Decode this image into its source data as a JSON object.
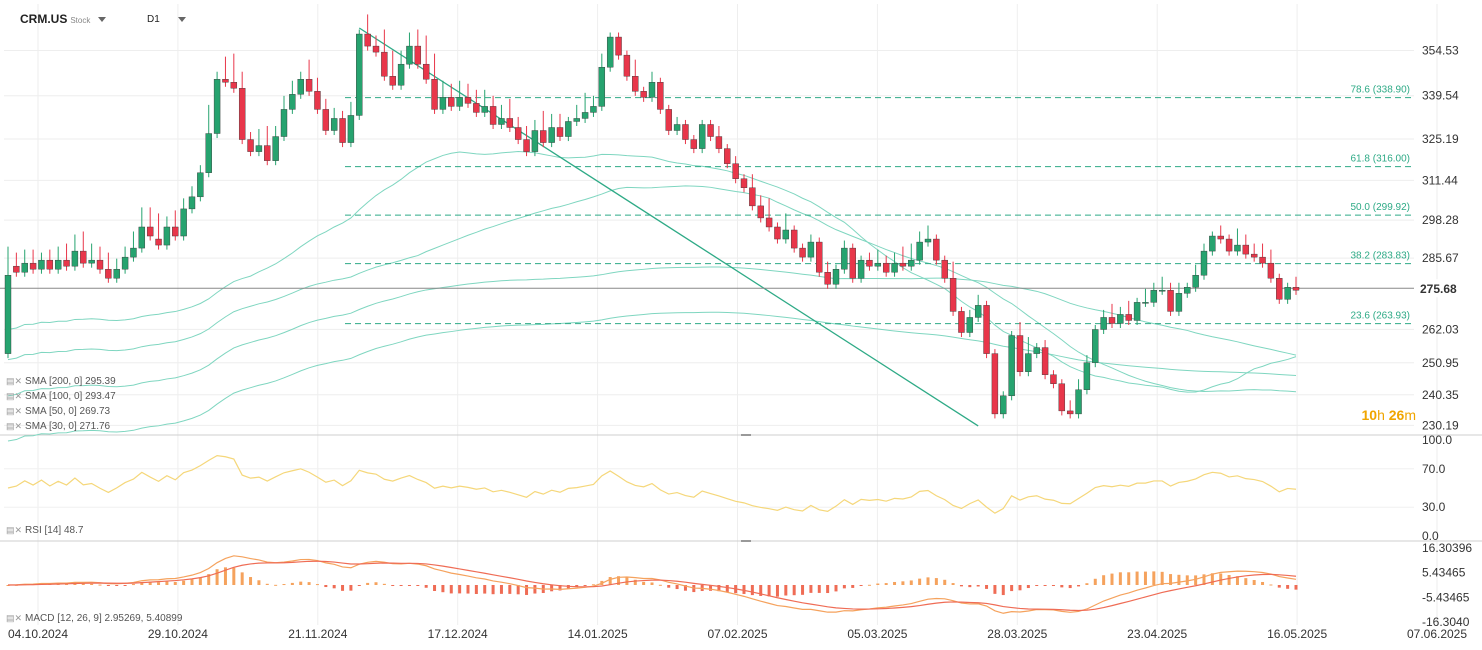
{
  "header": {
    "symbol": "CRM.US",
    "symbol_type": "Stock",
    "timeframe": "D1"
  },
  "countdown": {
    "hours": "10",
    "h_unit": "h",
    "minutes": "26",
    "m_unit": "m"
  },
  "current_price_label": "275.68",
  "colors": {
    "up": "#26a36f",
    "down": "#e8364a",
    "ma": "#7fd6c0",
    "fib": "#2eaa86",
    "rsi": "#f5d77a",
    "macd_line": "#f5a25d",
    "signal_line": "#ef6c55",
    "hist_pos": "#f5a25d",
    "hist_neg": "#ef6c55",
    "trendline": "#2eaa86",
    "timer": "#f0a500"
  },
  "price_legend": [
    {
      "label": "SMA [200,  0] 295.39"
    },
    {
      "label": "SMA [100,  0] 293.47"
    },
    {
      "label": "SMA [50,  0] 269.73"
    },
    {
      "label": "SMA [30,  0] 271.76"
    }
  ],
  "rsi_legend": {
    "label": "RSI [14] 48.7"
  },
  "macd_legend": {
    "label": "MACD [12, 26, 9] 2.95269,  5.40899"
  },
  "chart_data": [
    {
      "type": "candlestick",
      "title": "CRM.US Stock D1",
      "x_tick_labels": [
        "04.10.2024",
        "29.10.2024",
        "21.11.2024",
        "17.12.2024",
        "14.01.2025",
        "07.02.2025",
        "05.03.2025",
        "28.03.2025",
        "23.04.2025",
        "16.05.2025",
        "07.06.2025"
      ],
      "y_tick_labels": [
        "354.53",
        "339.54",
        "325.19",
        "311.44",
        "298.28",
        "285.67",
        "275.68",
        "262.03",
        "250.95",
        "240.35",
        "230.19"
      ],
      "ylim": [
        228,
        362
      ],
      "candles": [
        [
          254,
          288,
          280
        ],
        [
          283,
          286,
          281
        ],
        [
          281,
          287,
          284
        ],
        [
          284,
          287,
          282
        ],
        [
          282,
          286,
          285
        ],
        [
          285,
          287,
          282
        ],
        [
          282,
          288,
          285
        ],
        [
          285,
          289,
          283
        ],
        [
          283,
          292,
          288
        ],
        [
          288,
          293,
          284
        ],
        [
          284,
          289,
          285
        ],
        [
          285,
          288,
          282
        ],
        [
          282,
          286,
          279
        ],
        [
          279,
          284,
          282
        ],
        [
          282,
          288,
          286
        ],
        [
          286,
          293,
          289
        ],
        [
          289,
          301,
          296
        ],
        [
          296,
          301,
          293
        ],
        [
          292,
          299,
          290
        ],
        [
          290,
          298,
          296
        ],
        [
          296,
          300,
          293
        ],
        [
          293,
          304,
          302
        ],
        [
          302,
          308,
          306
        ],
        [
          306,
          315,
          314
        ],
        [
          314,
          335,
          327
        ],
        [
          327,
          346,
          345
        ],
        [
          345,
          351,
          344
        ],
        [
          344,
          352,
          342
        ],
        [
          342,
          346,
          325
        ],
        [
          325,
          326,
          321
        ],
        [
          321,
          327,
          323
        ],
        [
          323,
          328,
          318
        ],
        [
          318,
          328,
          326
        ],
        [
          326,
          338,
          335
        ],
        [
          335,
          343,
          340
        ],
        [
          340,
          346,
          345
        ],
        [
          345,
          350,
          341
        ],
        [
          341,
          344,
          335
        ],
        [
          335,
          337,
          328
        ],
        [
          328,
          334,
          332
        ],
        [
          332,
          333,
          324
        ],
        [
          324,
          336,
          333
        ],
        [
          333,
          360,
          360
        ],
        [
          360,
          365,
          356
        ],
        [
          356,
          358,
          354
        ],
        [
          354,
          360,
          346
        ],
        [
          346,
          353,
          343
        ],
        [
          343,
          353,
          350
        ],
        [
          350,
          359,
          356
        ],
        [
          356,
          360,
          350
        ],
        [
          350,
          358,
          345
        ],
        [
          345,
          352,
          335
        ],
        [
          335,
          343,
          339
        ],
        [
          339,
          342,
          336
        ],
        [
          336,
          343,
          339
        ],
        [
          339,
          342,
          337
        ],
        [
          337,
          340,
          334
        ],
        [
          334,
          340,
          336
        ],
        [
          336,
          338,
          330
        ],
        [
          330,
          335,
          332
        ],
        [
          332,
          337,
          329
        ],
        [
          329,
          331,
          325
        ],
        [
          325,
          328,
          321
        ],
        [
          321,
          330,
          328
        ],
        [
          328,
          333,
          324
        ],
        [
          324,
          332,
          329
        ],
        [
          329,
          332,
          326
        ],
        [
          326,
          330,
          331
        ],
        [
          331,
          335,
          332
        ],
        [
          332,
          339,
          334
        ],
        [
          334,
          338,
          336
        ],
        [
          336,
          352,
          349
        ],
        [
          349,
          358,
          359
        ],
        [
          359,
          357,
          353
        ],
        [
          353,
          350,
          346
        ],
        [
          346,
          350,
          341
        ],
        [
          341,
          340,
          339
        ],
        [
          339,
          346,
          344
        ],
        [
          344,
          342,
          335
        ],
        [
          335,
          332,
          328
        ],
        [
          328,
          331,
          330
        ],
        [
          330,
          328,
          325
        ],
        [
          325,
          323,
          322
        ],
        [
          322,
          329,
          330
        ],
        [
          330,
          328,
          326
        ],
        [
          326,
          328,
          322
        ],
        [
          322,
          321,
          317
        ],
        [
          317,
          318,
          312
        ],
        [
          312,
          311,
          309
        ],
        [
          309,
          312,
          303
        ],
        [
          303,
          305,
          299
        ],
        [
          299,
          304,
          296
        ],
        [
          296,
          293,
          292
        ],
        [
          292,
          299,
          295
        ],
        [
          295,
          293,
          289
        ],
        [
          289,
          289,
          286
        ],
        [
          286,
          292,
          291
        ],
        [
          291,
          288,
          281
        ],
        [
          281,
          283,
          277
        ],
        [
          277,
          280,
          282
        ],
        [
          282,
          290,
          289
        ],
        [
          289,
          288,
          279
        ],
        [
          279,
          284,
          285
        ],
        [
          285,
          286,
          283
        ],
        [
          283,
          287,
          284
        ],
        [
          284,
          285,
          281
        ],
        [
          281,
          286,
          284
        ],
        [
          284,
          288,
          283
        ],
        [
          283,
          289,
          285
        ],
        [
          285,
          293,
          291
        ],
        [
          291,
          295,
          292
        ],
        [
          292,
          288,
          285
        ],
        [
          285,
          281,
          279
        ],
        [
          279,
          283,
          268
        ],
        [
          268,
          267,
          261
        ],
        [
          261,
          267,
          266
        ],
        [
          266,
          272,
          270
        ],
        [
          270,
          259,
          254
        ],
        [
          254,
          245,
          234
        ],
        [
          234,
          231,
          240
        ],
        [
          240,
          256,
          260
        ],
        [
          260,
          263,
          248
        ],
        [
          248,
          258,
          254
        ],
        [
          254,
          255,
          256
        ],
        [
          256,
          257,
          247
        ],
        [
          247,
          247,
          244
        ],
        [
          244,
          244,
          235
        ],
        [
          235,
          237,
          234
        ],
        [
          234,
          244,
          242
        ],
        [
          242,
          252,
          251
        ],
        [
          251,
          262,
          262
        ],
        [
          262,
          267,
          266
        ],
        [
          266,
          269,
          264
        ],
        [
          264,
          268,
          267
        ],
        [
          267,
          270,
          265
        ],
        [
          265,
          271,
          271
        ],
        [
          271,
          274,
          271
        ],
        [
          271,
          276,
          275
        ],
        [
          275,
          278,
          275
        ],
        [
          275,
          276,
          268
        ],
        [
          268,
          276,
          274
        ],
        [
          274,
          276,
          276
        ],
        [
          276,
          282,
          280
        ],
        [
          280,
          289,
          288
        ],
        [
          288,
          291,
          293
        ],
        [
          293,
          295,
          292
        ],
        [
          292,
          290,
          288
        ],
        [
          288,
          294,
          290
        ],
        [
          290,
          292,
          287
        ],
        [
          287,
          289,
          286
        ],
        [
          286,
          289,
          284
        ],
        [
          284,
          287,
          279
        ],
        [
          279,
          277,
          272
        ],
        [
          272,
          275,
          276
        ],
        [
          276,
          278,
          275
        ]
      ],
      "candle_format": "[open, high, close]",
      "sma_lines": [
        "SMA 200",
        "SMA 100",
        "SMA 50",
        "SMA 30"
      ],
      "fibonacci_levels": [
        {
          "label": "78.6 (338.90)",
          "value": 338.9
        },
        {
          "label": "61.8 (316.00)",
          "value": 316.0
        },
        {
          "label": "50.0 (299.92)",
          "value": 299.92
        },
        {
          "label": "38.2 (283.83)",
          "value": 283.83
        },
        {
          "label": "23.6 (263.93)",
          "value": 263.93
        }
      ],
      "current_price": 275.68
    },
    {
      "type": "line",
      "title": "RSI [14] 48.7",
      "y_tick_labels": [
        "100.0",
        "70.0",
        "30.0",
        "0.0"
      ],
      "ylim": [
        0,
        100
      ]
    },
    {
      "type": "bar",
      "title": "MACD [12, 26, 9] 2.95269,  5.40899",
      "y_tick_labels": [
        "16.30396",
        "5.43465",
        "-5.43465",
        "-16.3040"
      ],
      "ylim": [
        -16.304,
        16.304
      ]
    }
  ]
}
